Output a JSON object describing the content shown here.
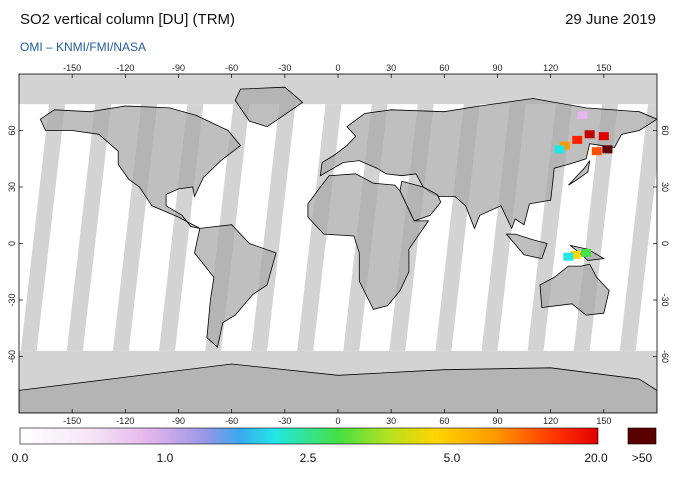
{
  "header": {
    "title": "SO2 vertical column [DU] (TRM)",
    "date": "29 June 2019",
    "source": "OMI  –  KNMI/FMI/NASA"
  },
  "map": {
    "lon_ticks": [
      -150,
      -120,
      -90,
      -60,
      -30,
      0,
      30,
      60,
      90,
      120,
      150
    ],
    "lat_ticks": [
      60,
      30,
      0,
      -30,
      -60
    ]
  },
  "colorbar": {
    "labels": [
      "0.0",
      "1.0",
      "2.5",
      "5.0",
      "20.0",
      ">50"
    ]
  }
}
